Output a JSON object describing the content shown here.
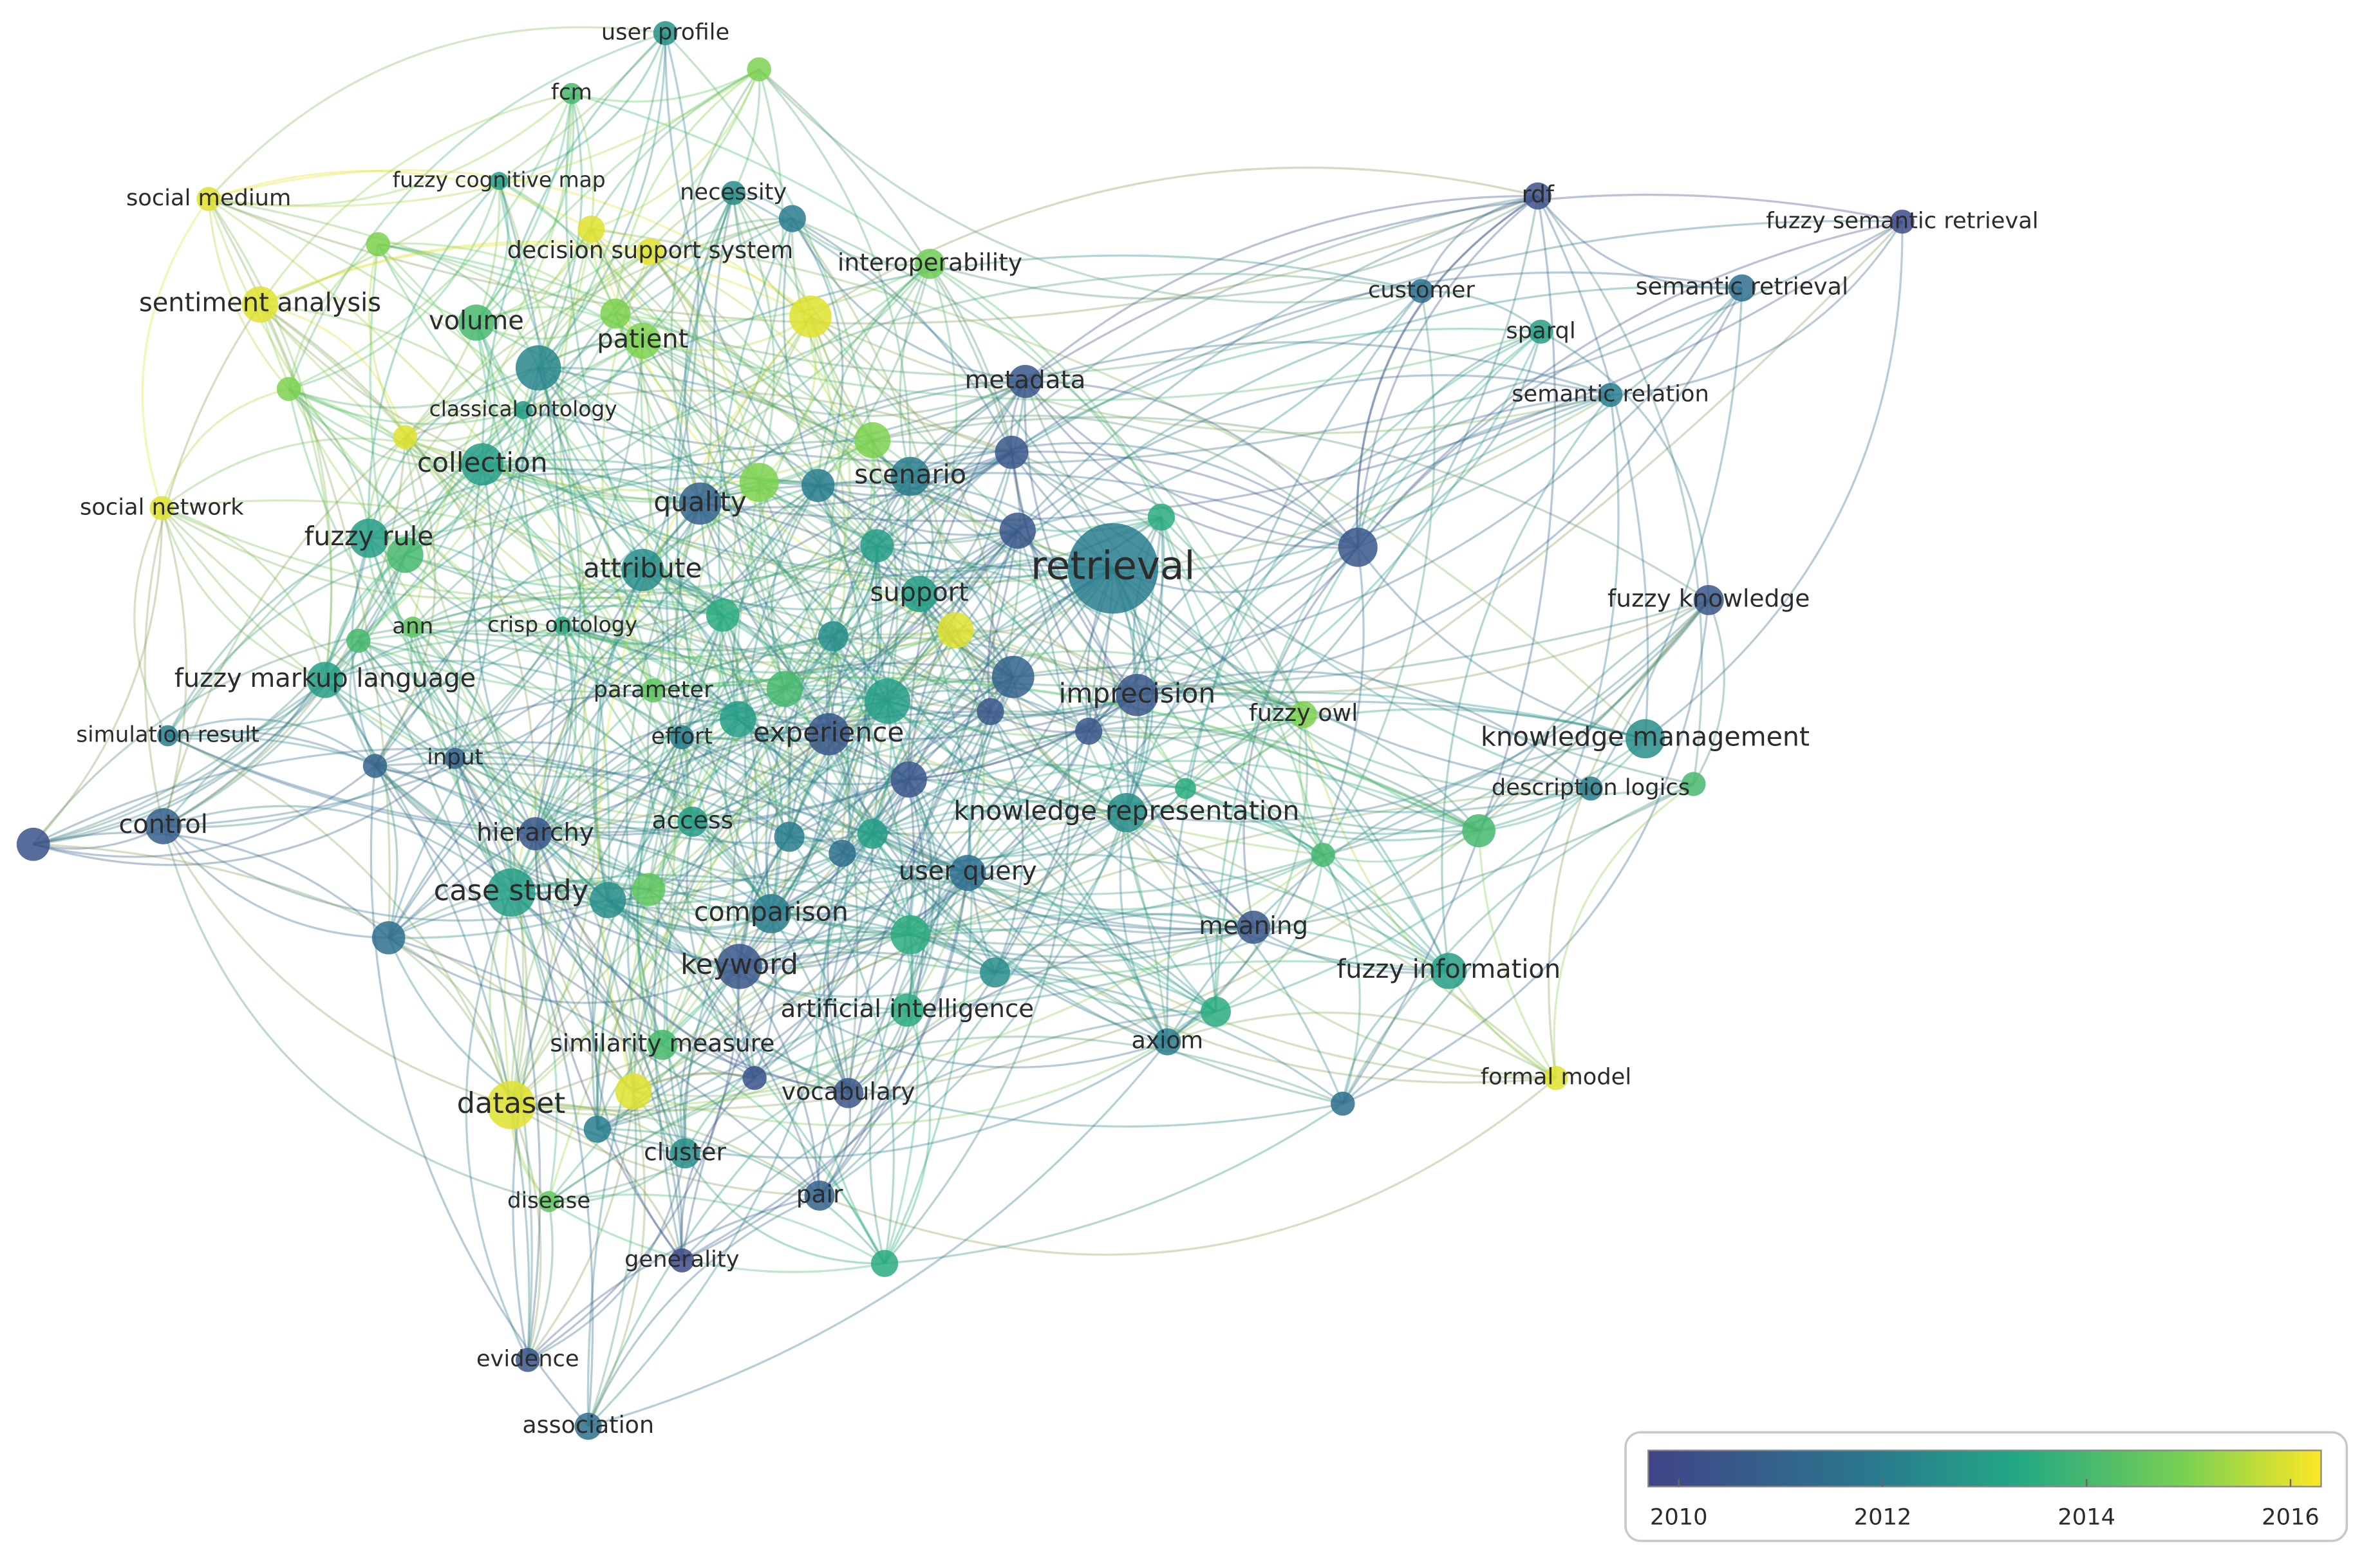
{
  "nodes": [
    {
      "label": "user profile",
      "year": 2012.6
    },
    {
      "label": "fcm",
      "year": 2014
    },
    {
      "label": "fuzzy cognitive map",
      "year": 2013
    },
    {
      "label": "social medium",
      "year": 2016
    },
    {
      "label": "necessity",
      "year": 2012.5
    },
    {
      "label": "decision support system",
      "year": 2016
    },
    {
      "label": "interoperability",
      "year": 2014.8
    },
    {
      "label": "sentiment analysis",
      "year": 2016
    },
    {
      "label": "volume",
      "year": 2014
    },
    {
      "label": "patient",
      "year": 2015
    },
    {
      "label": "classical ontology",
      "year": 2013
    },
    {
      "label": "metadata",
      "year": 2010.5
    },
    {
      "label": "collection",
      "year": 2013
    },
    {
      "label": "scenario",
      "year": 2012
    },
    {
      "label": "social network",
      "year": 2016
    },
    {
      "label": "quality",
      "year": 2011
    },
    {
      "label": "fuzzy rule",
      "year": 2013
    },
    {
      "label": "retrieval",
      "year": 2012
    },
    {
      "label": "attribute",
      "year": 2012.5
    },
    {
      "label": "support",
      "year": 2013
    },
    {
      "label": "fuzzy knowledge",
      "year": 2010.5
    },
    {
      "label": "ann",
      "year": 2014.5
    },
    {
      "label": "crisp ontology",
      "year": 2013.5
    },
    {
      "label": "fuzzy markup language",
      "year": 2013
    },
    {
      "label": "parameter",
      "year": 2014.5
    },
    {
      "label": "imprecision",
      "year": 2010.5
    },
    {
      "label": "fuzzy owl",
      "year": 2015
    },
    {
      "label": "simulation result",
      "year": 2012
    },
    {
      "label": "effort",
      "year": 2012
    },
    {
      "label": "experience",
      "year": 2010.5
    },
    {
      "label": "knowledge management",
      "year": 2012.5
    },
    {
      "label": "input",
      "year": 2011
    },
    {
      "label": "description logics",
      "year": 2012
    },
    {
      "label": "knowledge representation",
      "year": 2012.5
    },
    {
      "label": "control",
      "year": 2010.8
    },
    {
      "label": "hierarchy",
      "year": 2010.5
    },
    {
      "label": "access",
      "year": 2013
    },
    {
      "label": "user query",
      "year": 2011.5
    },
    {
      "label": "case study",
      "year": 2013
    },
    {
      "label": "comparison",
      "year": 2012
    },
    {
      "label": "meaning",
      "year": 2010.5
    },
    {
      "label": "keyword",
      "year": 2010.5
    },
    {
      "label": "fuzzy information",
      "year": 2013
    },
    {
      "label": "artificial intelligence",
      "year": 2013.5
    },
    {
      "label": "axiom",
      "year": 2012
    },
    {
      "label": "similarity measure",
      "year": 2014
    },
    {
      "label": "formal model",
      "year": 2016
    },
    {
      "label": "dataset",
      "year": 2016
    },
    {
      "label": "vocabulary",
      "year": 2010.5
    },
    {
      "label": "cluster",
      "year": 2012.5
    },
    {
      "label": "disease",
      "year": 2014.5
    },
    {
      "label": "pair",
      "year": 2011
    },
    {
      "label": "generality",
      "year": 2010
    },
    {
      "label": "evidence",
      "year": 2010.5
    },
    {
      "label": "association",
      "year": 2011.5
    },
    {
      "label": "rdf",
      "year": 2010.2
    },
    {
      "label": "fuzzy semantic retrieval",
      "year": 2010
    },
    {
      "label": "customer",
      "year": 2011.5
    },
    {
      "label": "semantic retrieval",
      "year": 2011.5
    },
    {
      "label": "sparql",
      "year": 2013
    },
    {
      "label": "semantic relation",
      "year": 2012
    },
    {
      "label": null,
      "year": 2015
    },
    {
      "label": null,
      "year": 2015
    },
    {
      "label": null,
      "year": 2016
    },
    {
      "label": null,
      "year": 2016
    },
    {
      "label": null,
      "year": 2015
    },
    {
      "label": null,
      "year": 2016
    },
    {
      "label": null,
      "year": 2015
    },
    {
      "label": null,
      "year": 2010.5
    },
    {
      "label": null,
      "year": 2015
    },
    {
      "label": null,
      "year": 2012
    },
    {
      "label": null,
      "year": 2010.5
    },
    {
      "label": null,
      "year": 2013.5
    },
    {
      "label": null,
      "year": 2010.5
    },
    {
      "label": null,
      "year": 2013
    },
    {
      "label": null,
      "year": 2013.5
    },
    {
      "label": null,
      "year": 2012.5
    },
    {
      "label": null,
      "year": 2016
    },
    {
      "label": null,
      "year": 2011
    },
    {
      "label": null,
      "year": 2013
    },
    {
      "label": null,
      "year": 2014
    },
    {
      "label": null,
      "year": 2010.5
    },
    {
      "label": null,
      "year": 2010.5
    },
    {
      "label": null,
      "year": 2010.5
    },
    {
      "label": null,
      "year": 2013.5
    },
    {
      "label": null,
      "year": 2014
    },
    {
      "label": null,
      "year": 2014
    },
    {
      "label": null,
      "year": 2012
    },
    {
      "label": null,
      "year": 2011.5
    },
    {
      "label": null,
      "year": 2013
    },
    {
      "label": null,
      "year": 2012.5
    },
    {
      "label": null,
      "year": 2014.5
    },
    {
      "label": null,
      "year": 2013.5
    },
    {
      "label": null,
      "year": 2012.5
    },
    {
      "label": null,
      "year": 2013.5
    },
    {
      "label": null,
      "year": 2016
    },
    {
      "label": null,
      "year": 2012
    },
    {
      "label": null,
      "year": 2010.3
    },
    {
      "label": null,
      "year": 2011.5
    },
    {
      "label": null,
      "year": 2013.5
    },
    {
      "label": null,
      "year": 2011.5
    },
    {
      "label": null,
      "year": 2011
    },
    {
      "label": null,
      "year": 2010.3
    },
    {
      "label": null,
      "year": 2014
    },
    {
      "label": null,
      "year": 2014
    },
    {
      "label": null,
      "year": 2014
    },
    {
      "label": null,
      "year": 2012
    },
    {
      "label": null,
      "year": 2015
    },
    {
      "label": null,
      "year": 2013
    },
    {
      "label": null,
      "year": 2012.3
    }
  ],
  "color_scale": {
    "range": [
      2009.7,
      2016.3
    ],
    "ticks": [
      2010,
      2012,
      2014,
      2016
    ]
  }
}
